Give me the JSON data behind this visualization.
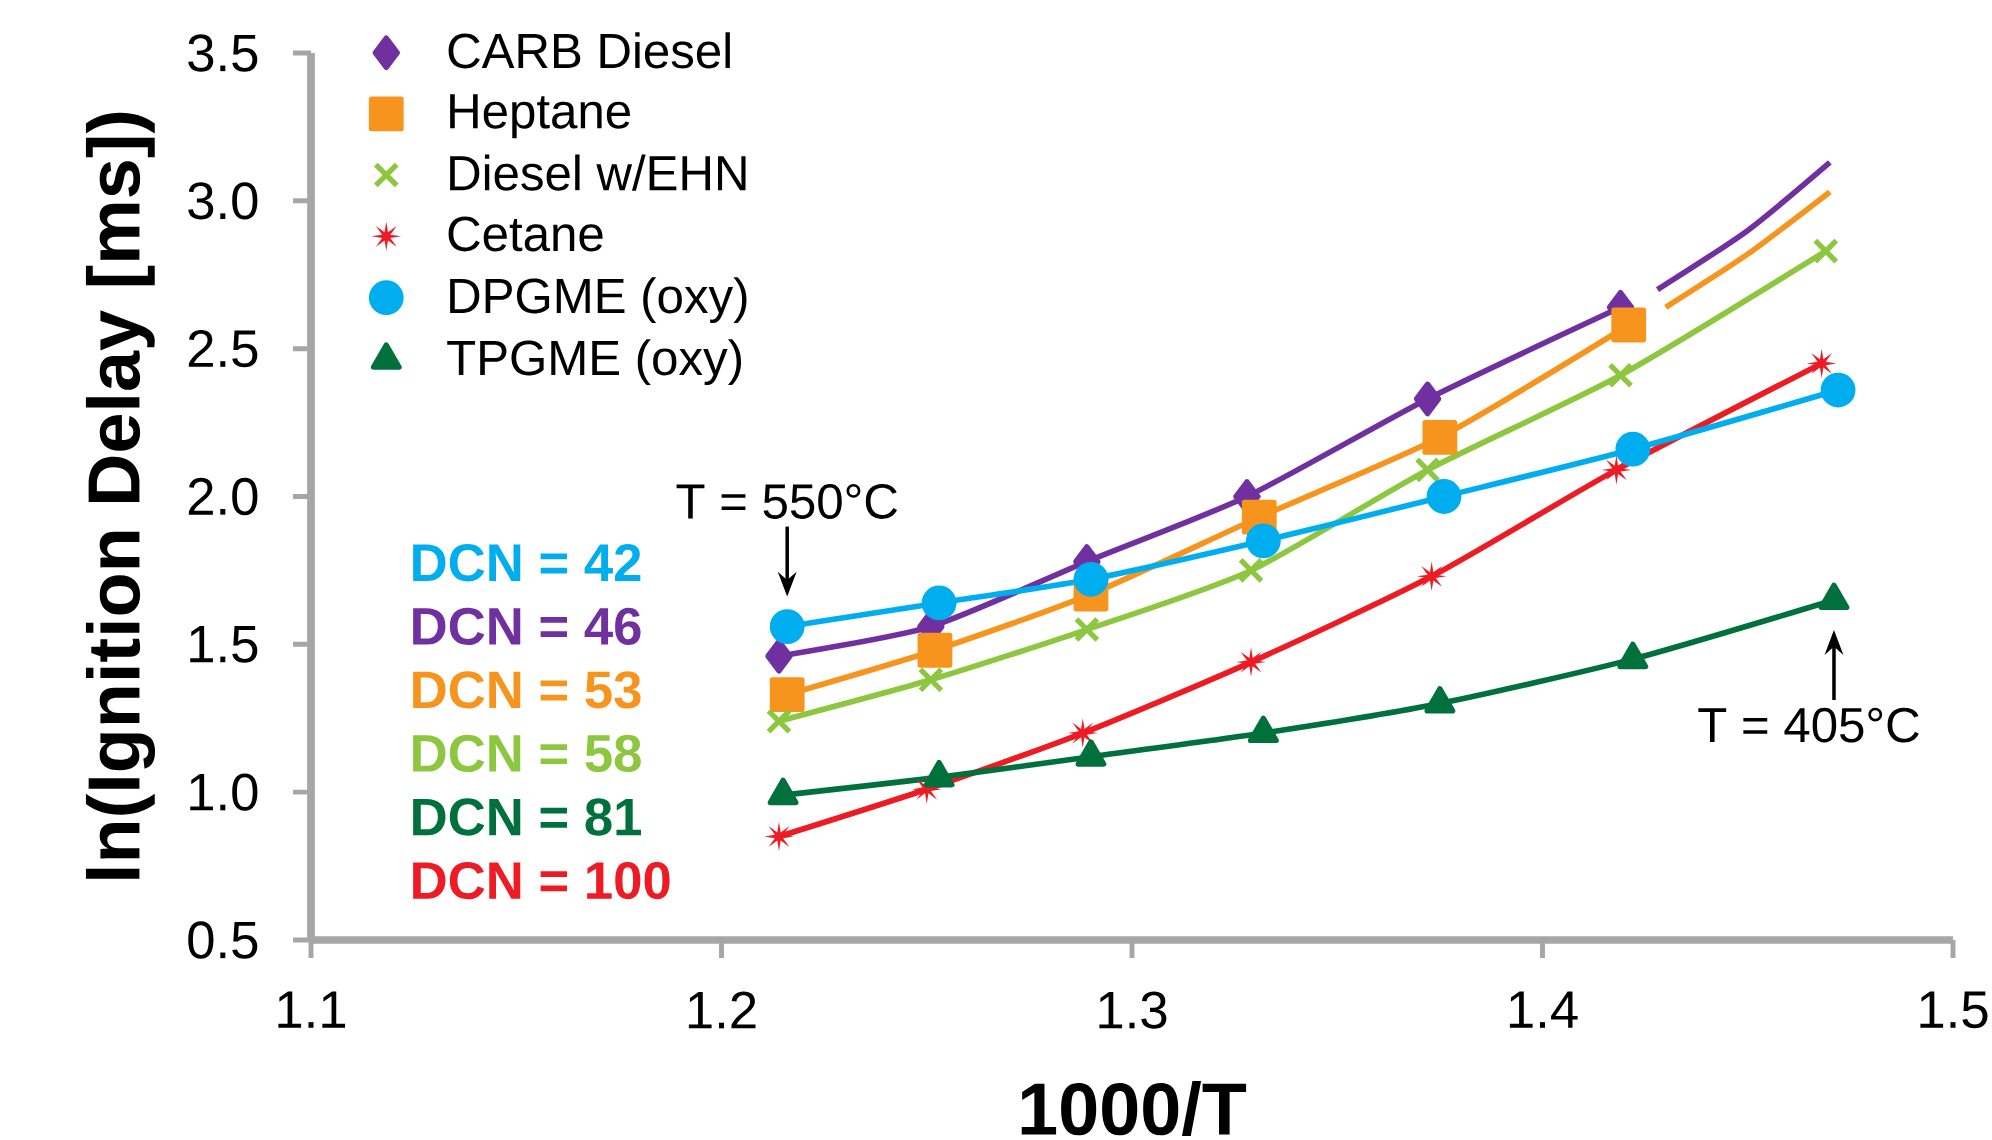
{
  "chart_data": {
    "type": "line",
    "xlabel": "1000/T",
    "ylabel": "ln(Ignition Delay [ms])",
    "xlim": [
      1.1,
      1.5
    ],
    "ylim": [
      0.5,
      3.5
    ],
    "xticks": [
      1.1,
      1.2,
      1.3,
      1.4,
      1.5
    ],
    "yticks": [
      0.5,
      {
        "value": 1,
        "label": "1.0"
      },
      1.5,
      {
        "value": 2,
        "label": "2.0"
      },
      2.5,
      {
        "value": 3,
        "label": "3.0"
      },
      3.5
    ],
    "legend": "top left",
    "grid": false,
    "series": [
      {
        "name": "CARB Diesel",
        "marker": "diamond",
        "color": "#7030a0",
        "x": [
          1.214,
          1.251,
          1.289,
          1.328,
          1.372,
          1.419
        ],
        "values": [
          1.46,
          1.56,
          1.78,
          2.0,
          2.33,
          2.64
        ]
      },
      {
        "name": "Heptane",
        "marker": "square",
        "color": "#f7941d",
        "x": [
          1.216,
          1.252,
          1.29,
          1.331,
          1.375,
          1.421
        ],
        "values": [
          1.33,
          1.48,
          1.67,
          1.93,
          2.2,
          2.58
        ]
      },
      {
        "name": "Diesel w/EHN",
        "marker": "cross",
        "color": "#8dc63f",
        "x": [
          1.214,
          1.251,
          1.289,
          1.329,
          1.372,
          1.419,
          1.469
        ],
        "values": [
          1.24,
          1.38,
          1.55,
          1.75,
          2.09,
          2.41,
          2.83
        ]
      },
      {
        "name": "Cetane",
        "marker": "star",
        "color": "#ed1c24",
        "x": [
          1.214,
          1.25,
          1.288,
          1.329,
          1.373,
          1.418,
          1.468
        ],
        "values": [
          0.85,
          1.01,
          1.2,
          1.44,
          1.73,
          2.09,
          2.45
        ]
      },
      {
        "name": "DPGME (oxy)",
        "marker": "circle",
        "color": "#00aeef",
        "x": [
          1.216,
          1.253,
          1.29,
          1.332,
          1.376,
          1.422,
          1.472
        ],
        "values": [
          1.56,
          1.64,
          1.72,
          1.85,
          2.0,
          2.16,
          2.36
        ]
      },
      {
        "name": "TPGME (oxy)",
        "marker": "triangle",
        "color": "#00703c",
        "x": [
          1.215,
          1.253,
          1.29,
          1.332,
          1.375,
          1.422,
          1.471
        ],
        "values": [
          0.99,
          1.05,
          1.12,
          1.2,
          1.3,
          1.45,
          1.65
        ]
      },
      {
        "marker": "none",
        "color": "#7030a0",
        "x": [
          1.428,
          1.45,
          1.47
        ],
        "values": [
          2.7,
          2.9,
          3.13
        ]
      },
      {
        "marker": "none",
        "color": "#f7941d",
        "x": [
          1.43,
          1.45,
          1.47
        ],
        "values": [
          2.64,
          2.82,
          3.03
        ]
      }
    ],
    "annotations": [
      {
        "text": "T = 550°C",
        "x": 1.216,
        "y": 1.56
      },
      {
        "text": "T = 405°C",
        "x": 1.471,
        "y": 1.65
      },
      "DCN = 42",
      "DCN = 46",
      "DCN = 53",
      "DCN = 58",
      "DCN = 81",
      "DCN = 100"
    ]
  }
}
